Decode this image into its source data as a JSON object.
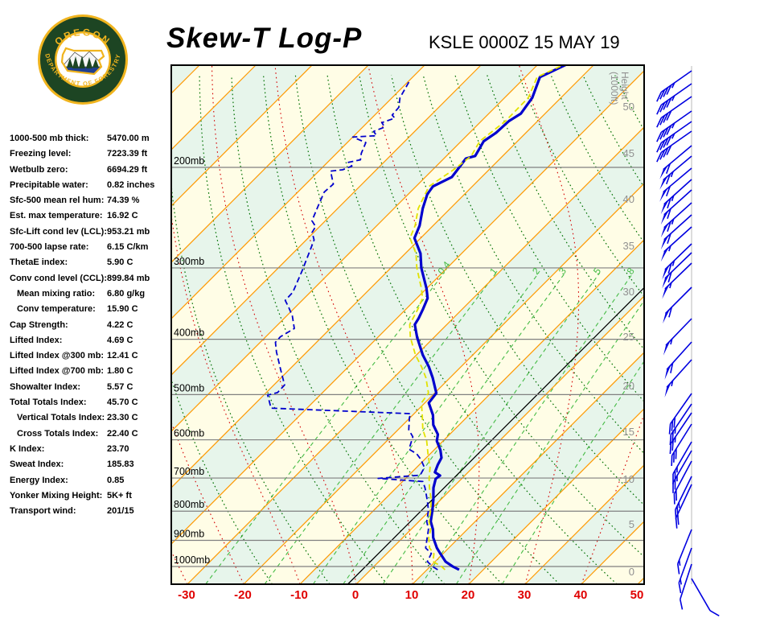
{
  "header": {
    "title": "Skew-T Log-P",
    "station": "KSLE 0000Z 15 MAY 19"
  },
  "logo": {
    "top_text": "OREGON",
    "bottom_text": "DEPARTMENT OF FORESTRY",
    "ring_color": "#1d4523",
    "gold_color": "#f0b41e",
    "tree_color": "#1d4523",
    "water_color": "#1f3f8f"
  },
  "indices": [
    {
      "label": "1000-500 mb thick:",
      "value": "5470.00 m",
      "indent": false
    },
    {
      "label": "Freezing level:",
      "value": "7223.39 ft",
      "indent": false
    },
    {
      "label": "Wetbulb zero:",
      "value": "6694.29 ft",
      "indent": false
    },
    {
      "label": "Precipitable water:",
      "value": "0.82 inches",
      "indent": false
    },
    {
      "label": "Sfc-500 mean rel hum:",
      "value": "74.39 %",
      "indent": false
    },
    {
      "label": "Est. max temperature:",
      "value": "16.92 C",
      "indent": false
    },
    {
      "label": "Sfc-Lift cond lev (LCL):",
      "value": "953.21 mb",
      "indent": false
    },
    {
      "label": "700-500 lapse rate:",
      "value": "6.15 C/km",
      "indent": false
    },
    {
      "label": "ThetaE index:",
      "value": "5.90 C",
      "indent": false
    },
    {
      "label": "Conv cond level (CCL):",
      "value": "899.84 mb",
      "indent": false
    },
    {
      "label": "Mean mixing ratio:",
      "value": "6.80 g/kg",
      "indent": true
    },
    {
      "label": "Conv temperature:",
      "value": "15.90 C",
      "indent": true
    },
    {
      "label": "Cap Strength:",
      "value": "4.22 C",
      "indent": false
    },
    {
      "label": "Lifted Index:",
      "value": "4.69 C",
      "indent": false
    },
    {
      "label": "Lifted Index @300 mb:",
      "value": "12.41 C",
      "indent": false
    },
    {
      "label": "Lifted Index @700 mb:",
      "value": "1.80 C",
      "indent": false
    },
    {
      "label": "Showalter Index:",
      "value": "5.57 C",
      "indent": false
    },
    {
      "label": "Total Totals Index:",
      "value": "45.70 C",
      "indent": false
    },
    {
      "label": "Vertical Totals Index:",
      "value": "23.30 C",
      "indent": true
    },
    {
      "label": "Cross Totals Index:",
      "value": "22.40 C",
      "indent": true
    },
    {
      "label": "K Index:",
      "value": "23.70",
      "indent": false
    },
    {
      "label": "Sweat Index:",
      "value": "185.83",
      "indent": false
    },
    {
      "label": "Energy Index:",
      "value": "0.85",
      "indent": false
    },
    {
      "label": "Yonker Mixing Height:",
      "value": "5K+ ft",
      "indent": false
    },
    {
      "label": "Transport wind:",
      "value": "201/15",
      "indent": false
    }
  ],
  "chart_data": {
    "type": "skew-t-log-p",
    "x_axis": {
      "label_color": "#e00000",
      "ticks": [
        -30,
        -20,
        -10,
        0,
        10,
        20,
        30,
        40,
        50
      ],
      "units": "C"
    },
    "pressure_lines_mb": [
      200,
      300,
      400,
      500,
      600,
      700,
      800,
      900,
      1000
    ],
    "pressure_label_suffix": "mb",
    "height_axis": {
      "title_line1": "Height",
      "title_line2": "(1000ft)",
      "ticks": [
        [
          0,
          710
        ],
        [
          5,
          651
        ],
        [
          10,
          595
        ],
        [
          15,
          536
        ],
        [
          20,
          479
        ],
        [
          25,
          418
        ],
        [
          30,
          362
        ],
        [
          35,
          305
        ],
        [
          40,
          247
        ],
        [
          45,
          190
        ],
        [
          50,
          132
        ]
      ]
    },
    "mixing_ratio_lines_gkg": [
      0.4,
      1,
      2,
      3,
      5,
      8,
      12,
      20
    ],
    "mixing_ratio_labels": [
      "0.4",
      "1",
      "2",
      "3",
      "5",
      "8"
    ],
    "black_isotherm_c": -1.5,
    "series": [
      {
        "name": "temperature",
        "color": "#0000cd",
        "style": "solid",
        "points_p_t": [
          [
            1013,
            15.7
          ],
          [
            1000,
            14.0
          ],
          [
            981,
            11.9
          ],
          [
            952,
            9.7
          ],
          [
            928,
            7.9
          ],
          [
            890,
            5.4
          ],
          [
            861,
            3.9
          ],
          [
            834,
            2.1
          ],
          [
            797,
            0.4
          ],
          [
            764,
            -1.3
          ],
          [
            728,
            -3.4
          ],
          [
            702,
            -4.6
          ],
          [
            693,
            -4.4
          ],
          [
            684,
            -5.9
          ],
          [
            664,
            -6.7
          ],
          [
            645,
            -7.3
          ],
          [
            625,
            -8.9
          ],
          [
            603,
            -11.1
          ],
          [
            587,
            -12.1
          ],
          [
            565,
            -14.6
          ],
          [
            543,
            -16.4
          ],
          [
            517,
            -19.3
          ],
          [
            497,
            -19.7
          ],
          [
            467,
            -23.1
          ],
          [
            447,
            -25.7
          ],
          [
            426,
            -28.9
          ],
          [
            397,
            -33.0
          ],
          [
            377,
            -35.7
          ],
          [
            368,
            -36.1
          ],
          [
            354,
            -37.0
          ],
          [
            339,
            -38.1
          ],
          [
            326,
            -40.0
          ],
          [
            300,
            -44.6
          ],
          [
            283,
            -47.3
          ],
          [
            266,
            -51.1
          ],
          [
            253,
            -52.4
          ],
          [
            236,
            -54.9
          ],
          [
            223,
            -56.6
          ],
          [
            216,
            -57.0
          ],
          [
            208,
            -55.3
          ],
          [
            202,
            -55.6
          ],
          [
            193,
            -56.1
          ],
          [
            191,
            -54.9
          ],
          [
            180,
            -56.0
          ],
          [
            174,
            -55.3
          ],
          [
            166,
            -55.1
          ],
          [
            161,
            -54.3
          ],
          [
            151,
            -55.1
          ],
          [
            139,
            -57.4
          ],
          [
            132,
            -54.9
          ]
        ]
      },
      {
        "name": "dewpoint",
        "color": "#0000cd",
        "style": "dashed",
        "points_p_t": [
          [
            1013,
            11.9
          ],
          [
            1000,
            10.4
          ],
          [
            980,
            8.6
          ],
          [
            949,
            7.9
          ],
          [
            928,
            5.9
          ],
          [
            861,
            3.1
          ],
          [
            834,
            1.4
          ],
          [
            797,
            -0.3
          ],
          [
            764,
            -2.4
          ],
          [
            728,
            -4.9
          ],
          [
            710,
            -6.4
          ],
          [
            701,
            -14.9
          ],
          [
            692,
            -8.0
          ],
          [
            671,
            -8.6
          ],
          [
            649,
            -10.7
          ],
          [
            635,
            -12.4
          ],
          [
            623,
            -14.6
          ],
          [
            593,
            -16.1
          ],
          [
            576,
            -18.1
          ],
          [
            549,
            -20.1
          ],
          [
            540,
            -20.6
          ],
          [
            528,
            -46.4
          ],
          [
            501,
            -49.3
          ],
          [
            496,
            -48.0
          ],
          [
            481,
            -48.1
          ],
          [
            454,
            -51.3
          ],
          [
            421,
            -55.4
          ],
          [
            405,
            -57.3
          ],
          [
            396,
            -57.4
          ],
          [
            383,
            -56.4
          ],
          [
            364,
            -59.0
          ],
          [
            352,
            -61.1
          ],
          [
            342,
            -63.0
          ],
          [
            331,
            -63.1
          ],
          [
            303,
            -65.3
          ],
          [
            268,
            -68.6
          ],
          [
            260,
            -70.3
          ],
          [
            254,
            -70.7
          ],
          [
            248,
            -72.4
          ],
          [
            232,
            -74.1
          ],
          [
            221,
            -75.3
          ],
          [
            214,
            -75.1
          ],
          [
            203,
            -77.9
          ],
          [
            202,
            -76.0
          ],
          [
            199,
            -75.0
          ],
          [
            196,
            -76.3
          ],
          [
            194,
            -74.6
          ],
          [
            189,
            -75.6
          ],
          [
            181,
            -76.7
          ],
          [
            177,
            -80.0
          ],
          [
            176,
            -76.0
          ],
          [
            173,
            -77.3
          ],
          [
            170,
            -76.1
          ],
          [
            167,
            -77.4
          ],
          [
            164,
            -75.9
          ],
          [
            162,
            -76.9
          ],
          [
            157,
            -77.1
          ],
          [
            151,
            -78.6
          ],
          [
            141,
            -79.9
          ]
        ]
      },
      {
        "name": "wetbulb",
        "color": "#e2e200",
        "style": "dashed",
        "points_p_t": [
          [
            1013,
            13.2
          ],
          [
            1000,
            12.0
          ],
          [
            980,
            9.6
          ],
          [
            950,
            8.4
          ],
          [
            928,
            6.6
          ],
          [
            890,
            4.6
          ],
          [
            861,
            3.5
          ],
          [
            834,
            1.8
          ],
          [
            797,
            0.1
          ],
          [
            764,
            -1.7
          ],
          [
            728,
            -4.1
          ],
          [
            700,
            -5.9
          ],
          [
            671,
            -7.6
          ],
          [
            635,
            -10.4
          ],
          [
            603,
            -12.9
          ],
          [
            576,
            -15.6
          ],
          [
            543,
            -18.3
          ],
          [
            517,
            -20.6
          ],
          [
            497,
            -21.1
          ],
          [
            467,
            -24.3
          ],
          [
            447,
            -27.0
          ],
          [
            426,
            -30.2
          ],
          [
            397,
            -34.2
          ],
          [
            377,
            -36.6
          ],
          [
            354,
            -37.9
          ],
          [
            339,
            -39.0
          ],
          [
            326,
            -40.9
          ],
          [
            300,
            -45.4
          ],
          [
            283,
            -48.1
          ],
          [
            266,
            -51.9
          ],
          [
            253,
            -53.2
          ],
          [
            236,
            -55.7
          ],
          [
            216,
            -57.7
          ],
          [
            202,
            -56.3
          ],
          [
            191,
            -55.6
          ],
          [
            180,
            -56.7
          ],
          [
            166,
            -55.7
          ],
          [
            151,
            -55.8
          ],
          [
            139,
            -57.9
          ],
          [
            132,
            -55.3
          ]
        ]
      }
    ],
    "wind_barbs": {
      "color": "#0000e0",
      "barbs_y_spd_dir": [
        [
          88,
          45,
          235
        ],
        [
          104,
          45,
          235
        ],
        [
          120,
          40,
          235
        ],
        [
          138,
          45,
          235
        ],
        [
          151,
          45,
          235
        ],
        [
          163,
          40,
          235
        ],
        [
          181,
          60,
          230
        ],
        [
          194,
          65,
          230
        ],
        [
          209,
          60,
          230
        ],
        [
          223,
          65,
          228
        ],
        [
          236,
          60,
          228
        ],
        [
          252,
          65,
          228
        ],
        [
          267,
          60,
          228
        ],
        [
          282,
          55,
          228
        ],
        [
          303,
          65,
          226
        ],
        [
          314,
          60,
          226
        ],
        [
          327,
          55,
          226
        ],
        [
          357,
          60,
          225
        ],
        [
          396,
          55,
          224
        ],
        [
          425,
          60,
          222
        ],
        [
          447,
          55,
          222
        ],
        [
          489,
          30,
          215
        ],
        [
          502,
          25,
          214
        ],
        [
          513,
          25,
          214
        ],
        [
          527,
          30,
          212
        ],
        [
          549,
          25,
          210
        ],
        [
          560,
          25,
          210
        ],
        [
          573,
          20,
          208
        ],
        [
          592,
          25,
          206
        ],
        [
          602,
          20,
          205
        ],
        [
          658,
          15,
          202
        ],
        [
          681,
          15,
          200
        ],
        [
          701,
          10,
          198
        ],
        [
          719,
          10,
          150
        ]
      ]
    },
    "colors": {
      "band_cream": "#fffde6",
      "band_mint": "#e7f5eb",
      "isotherm": "#ff9900",
      "dry_adiabat": "#007000",
      "moist_adiabat": "#d40000",
      "mixing_ratio": "#44bb44",
      "pressure_line": "#808080",
      "height_label": "#909090",
      "barb_guide": "#dcdcdc"
    }
  }
}
